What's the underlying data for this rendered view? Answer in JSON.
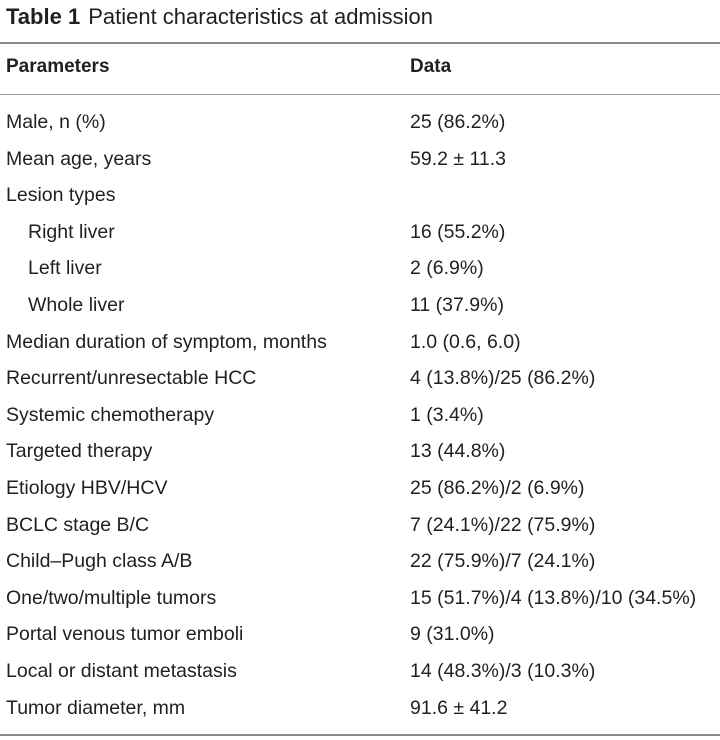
{
  "caption": {
    "label": "Table 1",
    "title": "Patient characteristics at admission"
  },
  "columns": [
    "Parameters",
    "Data"
  ],
  "rows": [
    {
      "param": "Male, n (%)",
      "value": "25 (86.2%)",
      "indent": false
    },
    {
      "param": "Mean age, years",
      "value": "59.2 ± 11.3",
      "indent": false
    },
    {
      "param": "Lesion types",
      "value": "",
      "indent": false
    },
    {
      "param": "Right liver",
      "value": "16 (55.2%)",
      "indent": true
    },
    {
      "param": "Left liver",
      "value": "2 (6.9%)",
      "indent": true
    },
    {
      "param": "Whole liver",
      "value": "11 (37.9%)",
      "indent": true
    },
    {
      "param": "Median duration of symptom, months",
      "value": "1.0 (0.6, 6.0)",
      "indent": false
    },
    {
      "param": "Recurrent/unresectable HCC",
      "value": "4 (13.8%)/25 (86.2%)",
      "indent": false
    },
    {
      "param": "Systemic chemotherapy",
      "value": "1 (3.4%)",
      "indent": false
    },
    {
      "param": "Targeted therapy",
      "value": "13 (44.8%)",
      "indent": false
    },
    {
      "param": "Etiology HBV/HCV",
      "value": "25 (86.2%)/2 (6.9%)",
      "indent": false
    },
    {
      "param": "BCLC stage B/C",
      "value": "7 (24.1%)/22 (75.9%)",
      "indent": false
    },
    {
      "param": "Child–Pugh class A/B",
      "value": "22 (75.9%)/7 (24.1%)",
      "indent": false
    },
    {
      "param": "One/two/multiple tumors",
      "value": "15 (51.7%)/4 (13.8%)/10 (34.5%)",
      "indent": false
    },
    {
      "param": "Portal venous tumor emboli",
      "value": "9 (31.0%)",
      "indent": false
    },
    {
      "param": "Local or distant metastasis",
      "value": "14 (48.3%)/3 (10.3%)",
      "indent": false
    },
    {
      "param": "Tumor diameter, mm",
      "value": "91.6 ± 41.2",
      "indent": false
    }
  ]
}
